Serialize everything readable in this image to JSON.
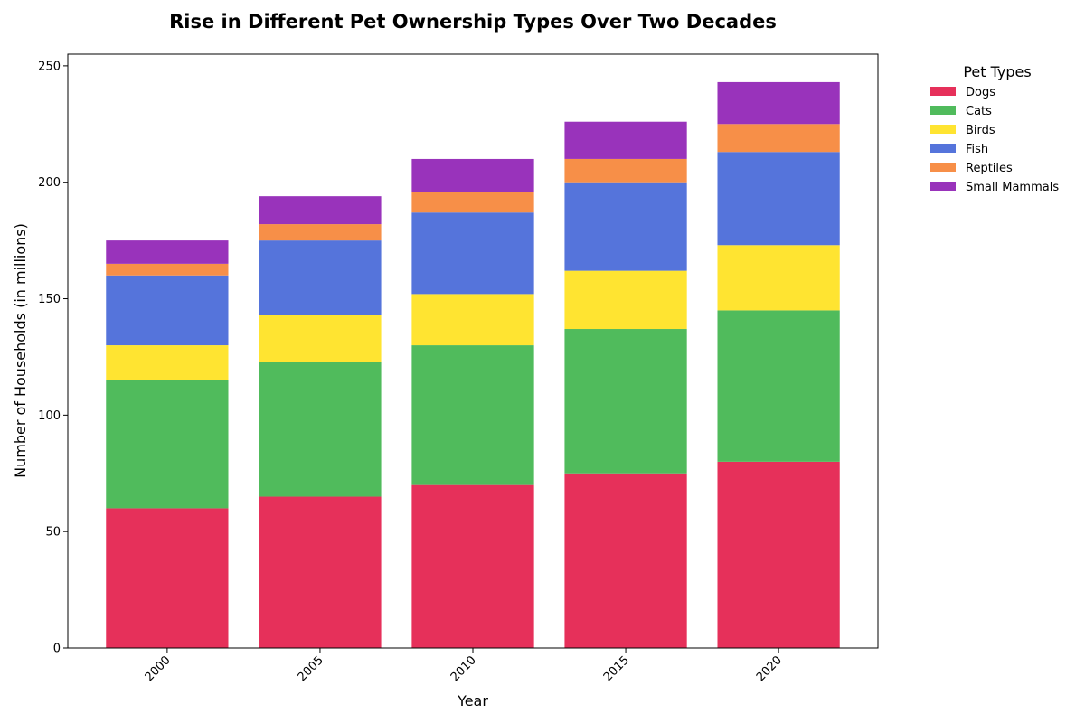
{
  "chart_data": {
    "type": "bar",
    "stacked": true,
    "title": "Rise in Different Pet Ownership Types Over Two Decades",
    "xlabel": "Year",
    "ylabel": "Number of Households (in millions)",
    "categories": [
      "2000",
      "2005",
      "2010",
      "2015",
      "2020"
    ],
    "ylim": [
      0,
      255
    ],
    "yticks": [
      0,
      50,
      100,
      150,
      200,
      250
    ],
    "grid": false,
    "legend_title": "Pet Types",
    "legend_position": "outside-top-right",
    "series": [
      {
        "name": "Dogs",
        "color": "#e6305a",
        "values": [
          60,
          65,
          70,
          75,
          80
        ]
      },
      {
        "name": "Cats",
        "color": "#50bb5c",
        "values": [
          55,
          58,
          60,
          62,
          65
        ]
      },
      {
        "name": "Birds",
        "color": "#ffe431",
        "values": [
          15,
          20,
          22,
          25,
          28
        ]
      },
      {
        "name": "Fish",
        "color": "#5574db",
        "values": [
          30,
          32,
          35,
          38,
          40
        ]
      },
      {
        "name": "Reptiles",
        "color": "#f78f48",
        "values": [
          5,
          7,
          9,
          10,
          12
        ]
      },
      {
        "name": "Small Mammals",
        "color": "#9933bb",
        "values": [
          10,
          12,
          14,
          16,
          18
        ]
      }
    ]
  }
}
